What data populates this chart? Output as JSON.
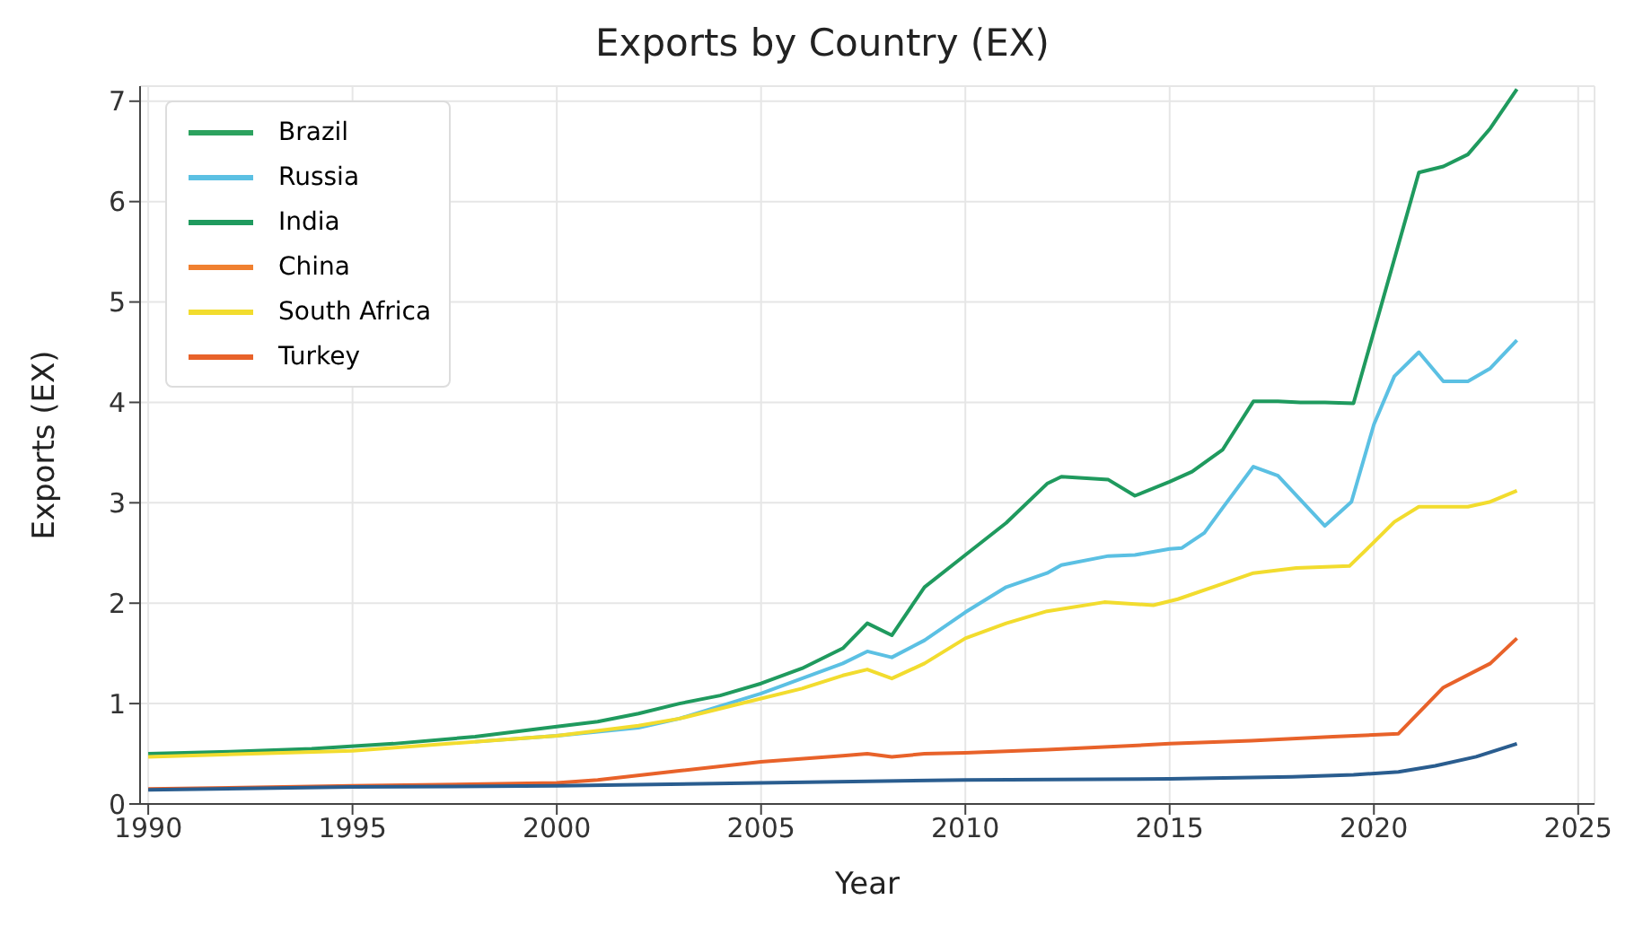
{
  "chart_data": {
    "type": "line",
    "title": "Exports by Country (EX)",
    "xlabel": "Year",
    "ylabel": "Exports (EX)",
    "xlim": [
      1989.8,
      2025.4
    ],
    "xticks": [
      1990,
      1995,
      2000,
      2005,
      2010,
      2015,
      2020,
      2025
    ],
    "ylim": [
      0,
      7.15
    ],
    "yticks": [
      0,
      1,
      2,
      3,
      4,
      5,
      6,
      7
    ],
    "grid": true,
    "legend": "top left",
    "line_style": "solid",
    "marker": "none",
    "series": [
      {
        "name": "Brazil",
        "color": "#2ca25f"
      },
      {
        "name": "Russia",
        "color": "#5bc0e3",
        "x": [
          1998,
          2000,
          2002,
          2003,
          2005,
          2006,
          2007,
          2007.6,
          2008.2,
          2009,
          2010,
          2011,
          2012,
          2012.35,
          2013.5,
          2014.15,
          2015,
          2015.3,
          2015.85,
          2016.3,
          2017.05,
          2017.65,
          2018.8,
          2019.45,
          2020,
          2020.5,
          2021.1,
          2021.7,
          2022.3,
          2022.85,
          2023.5
        ],
        "values": [
          0.62,
          0.68,
          0.76,
          0.85,
          1.1,
          1.25,
          1.4,
          1.52,
          1.46,
          1.63,
          1.91,
          2.16,
          2.3,
          2.38,
          2.47,
          2.48,
          2.54,
          2.55,
          2.7,
          2.95,
          3.36,
          3.27,
          2.77,
          3.01,
          3.78,
          4.26,
          4.5,
          4.21,
          4.21,
          4.34,
          4.62
        ]
      },
      {
        "name": "India",
        "color": "#1f9a5e",
        "x": [
          1990,
          1992,
          1994,
          1996,
          1998,
          2000,
          2001,
          2002,
          2003,
          2004,
          2005,
          2006,
          2007,
          2007.6,
          2008.2,
          2009,
          2010,
          2011,
          2012,
          2012.35,
          2013.5,
          2014.15,
          2015,
          2015.55,
          2016.3,
          2017.05,
          2017.65,
          2018.2,
          2018.8,
          2019.5,
          2021.1,
          2021.7,
          2022.3,
          2022.85,
          2023.5
        ],
        "values": [
          0.5,
          0.52,
          0.55,
          0.6,
          0.67,
          0.77,
          0.82,
          0.9,
          1.0,
          1.08,
          1.2,
          1.35,
          1.55,
          1.8,
          1.68,
          2.16,
          2.48,
          2.8,
          3.19,
          3.26,
          3.23,
          3.07,
          3.21,
          3.31,
          3.53,
          4.01,
          4.01,
          4.0,
          4.0,
          3.99,
          6.29,
          6.35,
          6.47,
          6.73,
          7.12
        ]
      },
      {
        "name": "China",
        "color": "#f08030"
      },
      {
        "name": "South Africa",
        "color": "#f2dc2e",
        "x": [
          1990,
          1995,
          2000,
          2002,
          2003,
          2005,
          2006,
          2007,
          2007.6,
          2008.2,
          2009,
          2010,
          2011,
          2012,
          2013.4,
          2014.6,
          2015.2,
          2016.2,
          2017.05,
          2018.1,
          2019.4,
          2019.93,
          2020.5,
          2021.1,
          2022.3,
          2022.85,
          2023.5
        ],
        "values": [
          0.47,
          0.53,
          0.68,
          0.78,
          0.85,
          1.05,
          1.15,
          1.28,
          1.34,
          1.25,
          1.4,
          1.65,
          1.8,
          1.92,
          2.01,
          1.98,
          2.04,
          2.18,
          2.3,
          2.35,
          2.37,
          2.58,
          2.81,
          2.96,
          2.96,
          3.01,
          3.12
        ]
      },
      {
        "name": "Turkey",
        "color": "#e8622a",
        "x": [
          1990,
          1995,
          2000,
          2001,
          2003,
          2005,
          2007,
          2007.6,
          2008.2,
          2009,
          2010,
          2012,
          2015,
          2017,
          2019,
          2020.6,
          2021.7,
          2022.85,
          2023.5
        ],
        "values": [
          0.15,
          0.18,
          0.21,
          0.24,
          0.33,
          0.42,
          0.48,
          0.5,
          0.47,
          0.5,
          0.51,
          0.54,
          0.6,
          0.63,
          0.67,
          0.7,
          1.16,
          1.4,
          1.65
        ]
      },
      {
        "color": "#2a5d8f",
        "x": [
          1990,
          1995,
          2000,
          2005,
          2010,
          2015,
          2018,
          2019.5,
          2020.6,
          2021.5,
          2022.5,
          2023.5
        ],
        "values": [
          0.14,
          0.17,
          0.18,
          0.21,
          0.24,
          0.25,
          0.27,
          0.29,
          0.32,
          0.38,
          0.47,
          0.6
        ]
      }
    ]
  }
}
